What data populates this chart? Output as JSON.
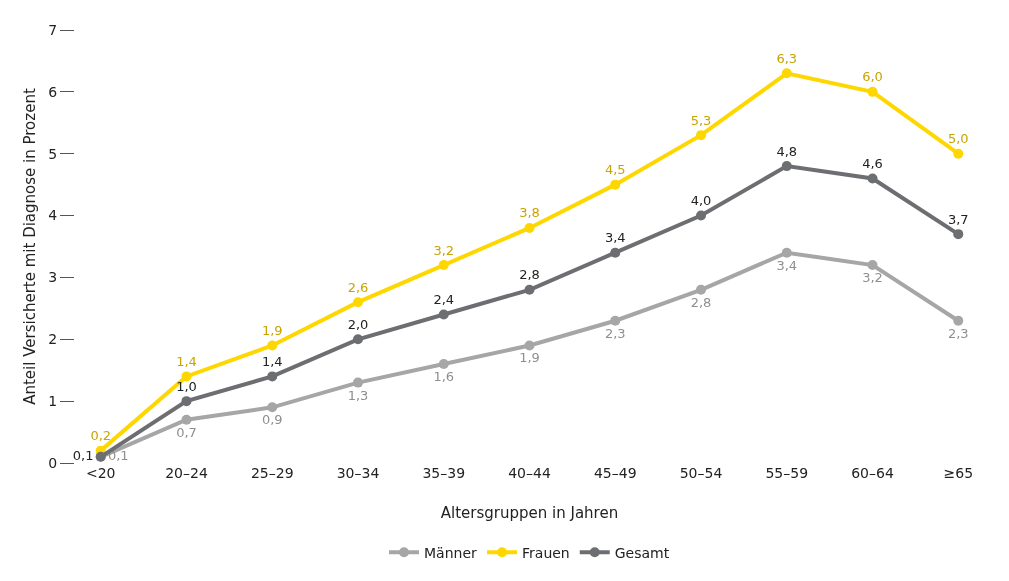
{
  "chart_data": {
    "type": "line",
    "xlabel": "Altersgruppen in Jahren",
    "ylabel": "Anteil Versicherte mit Diagnose in Prozent",
    "categories": [
      "<20",
      "20–24",
      "25–29",
      "30–34",
      "35–39",
      "40–44",
      "45–49",
      "50–54",
      "55–59",
      "60–64",
      "≥65"
    ],
    "series": [
      {
        "name": "Männer",
        "color": "#a6a6a6",
        "values": [
          0.1,
          0.7,
          0.9,
          1.3,
          1.6,
          1.9,
          2.3,
          2.8,
          3.4,
          3.2,
          2.3
        ],
        "value_labels": [
          "0,1",
          "0,7",
          "0,9",
          "1,3",
          "1,6",
          "1,9",
          "2,3",
          "2,8",
          "3,4",
          "3,2",
          "2,3"
        ]
      },
      {
        "name": "Frauen",
        "color": "#ffd700",
        "values": [
          0.2,
          1.4,
          1.9,
          2.6,
          3.2,
          3.8,
          4.5,
          5.3,
          6.3,
          6.0,
          5.0
        ],
        "value_labels": [
          "0,2",
          "1,4",
          "1,9",
          "2,6",
          "3,2",
          "3,8",
          "4,5",
          "5,3",
          "6,3",
          "6,0",
          "5,0"
        ]
      },
      {
        "name": "Gesamt",
        "color": "#6d6e71",
        "values": [
          0.1,
          1.0,
          1.4,
          2.0,
          2.4,
          2.8,
          3.4,
          4.0,
          4.8,
          4.6,
          3.7
        ],
        "value_labels": [
          "0,1",
          "1,0",
          "1,4",
          "2,0",
          "2,4",
          "2,8",
          "3,4",
          "4,0",
          "4,8",
          "4,6",
          "3,7"
        ]
      }
    ],
    "ylim": [
      0,
      7
    ],
    "yticks": [
      0,
      1,
      2,
      3,
      4,
      5,
      6,
      7
    ],
    "grid": false,
    "legend": "bottom",
    "marker": "circle",
    "line_style": "solid"
  }
}
